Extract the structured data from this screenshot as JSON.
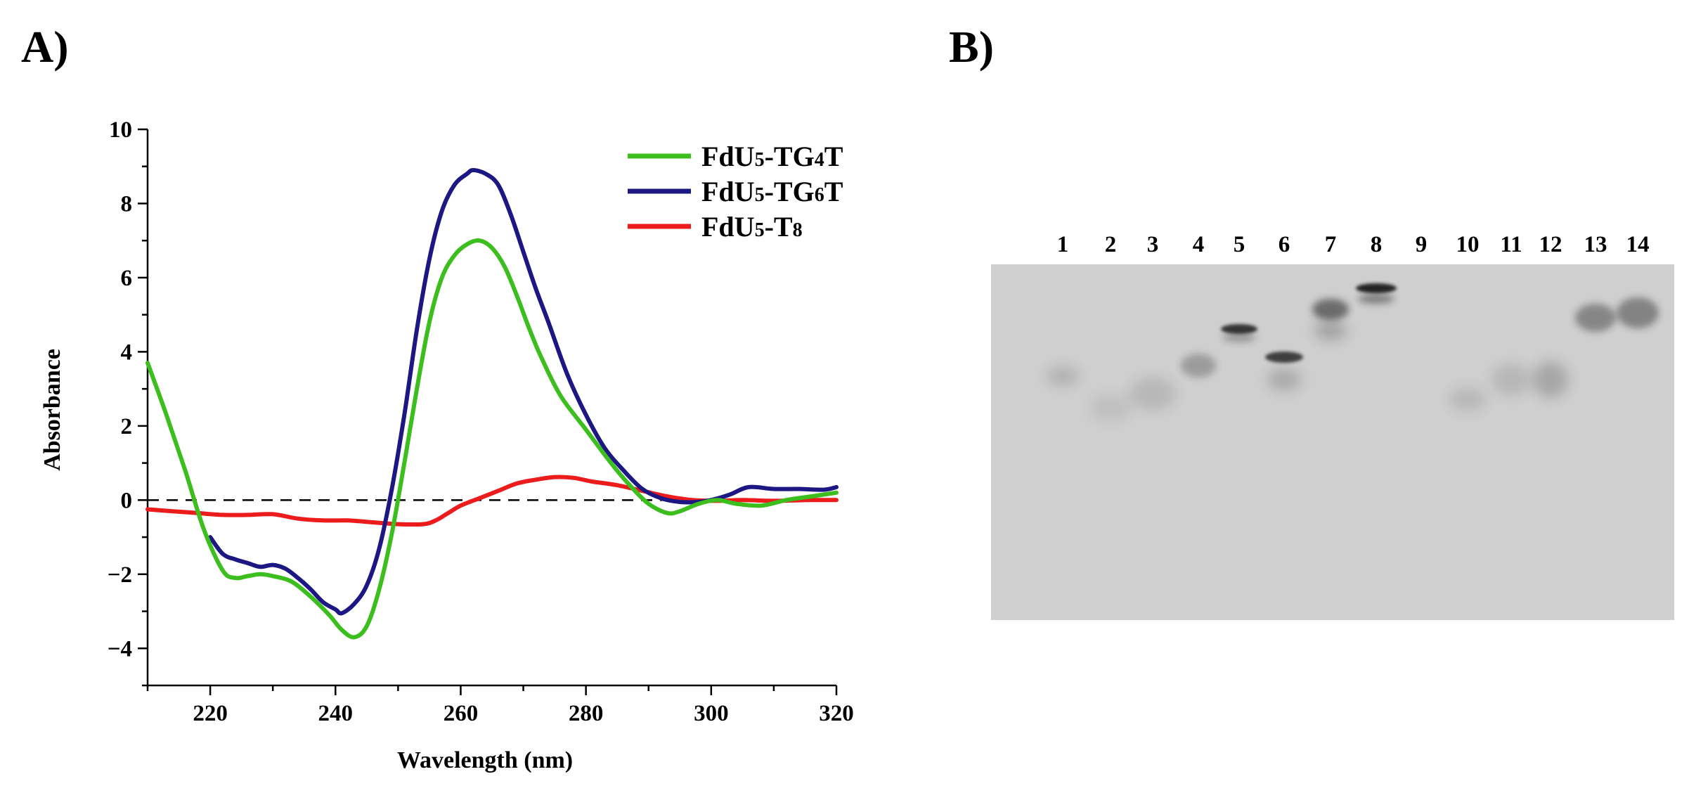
{
  "panels": {
    "a_label": "A)",
    "b_label": "B)"
  },
  "chart_data": {
    "type": "line",
    "title": "",
    "xlabel": "Wavelength (nm)",
    "ylabel": "Absorbance",
    "xlim": [
      210,
      320
    ],
    "ylim": [
      -5,
      10
    ],
    "xticks": [
      220,
      240,
      260,
      280,
      300,
      320
    ],
    "yticks": [
      -4,
      -2,
      0,
      2,
      4,
      6,
      8,
      10
    ],
    "grid": false,
    "legend_position": "top-right",
    "reference_line": {
      "y": 0,
      "style": "dashed"
    },
    "series": [
      {
        "name": "FdU5-TG4T",
        "name_parts": [
          "FdU",
          "5",
          "-TG",
          "4",
          "T"
        ],
        "color": "#3cbf1e",
        "x": [
          210,
          213,
          216,
          219,
          222,
          224,
          226,
          228,
          230,
          233,
          236,
          239,
          241,
          243,
          245,
          247,
          249,
          251,
          253,
          255,
          257,
          259,
          261,
          263,
          265,
          267,
          269,
          271,
          273,
          276,
          280,
          284,
          287,
          290,
          293,
          295,
          298,
          301,
          304,
          308,
          312,
          316,
          320
        ],
        "values": [
          3.7,
          2.3,
          0.8,
          -0.8,
          -1.9,
          -2.1,
          -2.05,
          -2.0,
          -2.05,
          -2.2,
          -2.6,
          -3.1,
          -3.5,
          -3.7,
          -3.4,
          -2.4,
          -0.9,
          1.0,
          3.0,
          4.8,
          6.0,
          6.6,
          6.9,
          7.0,
          6.8,
          6.3,
          5.5,
          4.6,
          3.8,
          2.8,
          1.9,
          1.0,
          0.4,
          -0.1,
          -0.35,
          -0.3,
          -0.1,
          0.0,
          -0.1,
          -0.15,
          0.0,
          0.1,
          0.2
        ]
      },
      {
        "name": "FdU5-TG6T",
        "name_parts": [
          "FdU",
          "5",
          "-TG",
          "6",
          "T"
        ],
        "color": "#1c1783",
        "x": [
          220,
          222,
          224,
          226,
          228,
          230,
          232,
          234,
          236,
          238,
          240,
          241,
          243,
          245,
          247,
          249,
          251,
          253,
          255,
          257,
          259,
          261,
          262,
          264,
          266,
          268,
          270,
          272,
          274,
          277,
          280,
          283,
          286,
          289,
          292,
          295,
          298,
          300,
          303,
          306,
          310,
          314,
          318,
          320
        ],
        "values": [
          -1.0,
          -1.45,
          -1.6,
          -1.7,
          -1.8,
          -1.75,
          -1.85,
          -2.1,
          -2.4,
          -2.75,
          -2.95,
          -3.05,
          -2.8,
          -2.3,
          -1.3,
          0.3,
          2.3,
          4.6,
          6.5,
          7.8,
          8.5,
          8.8,
          8.9,
          8.8,
          8.5,
          7.7,
          6.7,
          5.7,
          4.8,
          3.4,
          2.3,
          1.4,
          0.8,
          0.3,
          0.05,
          -0.05,
          -0.05,
          0.0,
          0.15,
          0.35,
          0.3,
          0.3,
          0.28,
          0.35
        ]
      },
      {
        "name": "FdU5-T8",
        "name_parts": [
          "FdU",
          "5",
          "-T",
          "8",
          ""
        ],
        "color": "#ec1c1c",
        "x": [
          210,
          214,
          218,
          222,
          226,
          230,
          234,
          238,
          242,
          246,
          250,
          254,
          256,
          258,
          260,
          263,
          266,
          269,
          272,
          275,
          278,
          281,
          285,
          289,
          293,
          297,
          301,
          305,
          310,
          315,
          320
        ],
        "values": [
          -0.25,
          -0.3,
          -0.35,
          -0.4,
          -0.4,
          -0.38,
          -0.5,
          -0.55,
          -0.55,
          -0.6,
          -0.65,
          -0.65,
          -0.55,
          -0.35,
          -0.15,
          0.05,
          0.25,
          0.45,
          0.55,
          0.62,
          0.6,
          0.5,
          0.4,
          0.25,
          0.1,
          0.0,
          -0.02,
          0.0,
          -0.02,
          0.0,
          0.0
        ]
      }
    ]
  },
  "gel": {
    "lanes": [
      "1",
      "2",
      "3",
      "4",
      "5",
      "6",
      "7",
      "8",
      "9",
      "10",
      "11",
      "12",
      "13",
      "14"
    ],
    "colors": {
      "background": "#cfcfcf",
      "band": "#1a1a1a"
    }
  }
}
